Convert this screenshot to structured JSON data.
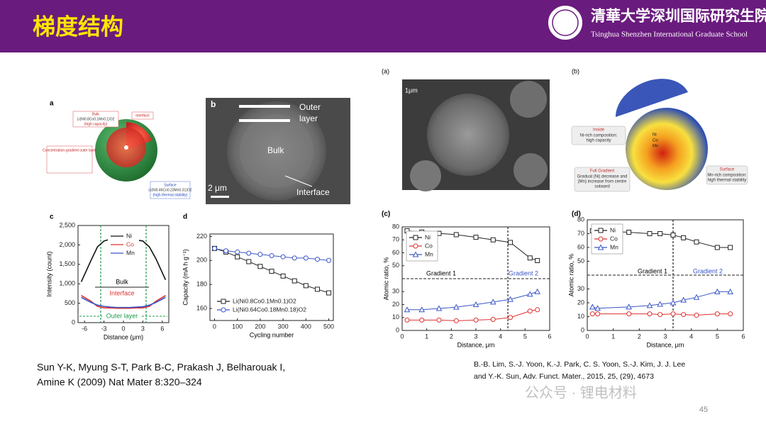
{
  "header": {
    "title": "梯度结构",
    "institution": "清華大学深圳国际研究生院",
    "institution_en": "Tsinghua Shenzhen International Graduate School"
  },
  "figures": {
    "left_a": {
      "label": "a",
      "texts": [
        "Bulk",
        "Li(Ni0.8Co0.1Mn0.1)O2",
        "(high capacity)",
        "Interface",
        "Concentration-gradient outer layer",
        "Surface",
        "Li(Ni0.46Co0.23Mn0.31)O2",
        "(high thermal stability)"
      ]
    },
    "left_b": {
      "label": "b",
      "outer": [
        "Outer",
        "layer"
      ],
      "bulk": "Bulk",
      "interface": "Interface",
      "scale": "2 μm"
    },
    "right_a": {
      "label": "(a)",
      "scale": "1μm"
    },
    "right_b": {
      "label": "(b)",
      "texts": [
        "Inside",
        "Ni-rich composition:",
        "high capacity",
        "Full Gradient",
        "Gradual (Ni) decrease and",
        "(Mn) increase from centre",
        "outward",
        "Surface",
        "Mn-rich composition:",
        "high thermal stability",
        "Ni",
        "Co",
        "Mn"
      ]
    }
  },
  "chart_data": [
    {
      "type": "line",
      "label": "c",
      "xlabel": "Distance (μm)",
      "ylabel": "Intensity (count)",
      "xlim": [
        -7,
        7
      ],
      "xticks": [
        -6,
        -3,
        0,
        3,
        6
      ],
      "ylim": [
        0,
        2500
      ],
      "yticks": [
        0,
        500,
        {
          "value": 1000,
          "label": "1,000"
        },
        {
          "value": 1500,
          "label": "1,500"
        },
        {
          "value": 2000,
          "label": "2,000"
        },
        {
          "value": 2500,
          "label": "2,500"
        }
      ],
      "vlines": [
        -3.5,
        3.5
      ],
      "vline_color": "#1a9a4a",
      "legend": "upper center",
      "annotations": [
        "Bulk",
        "Interface",
        "Outer layer"
      ],
      "x": [
        -6.5,
        -5,
        -4,
        -3,
        -2,
        -1,
        0,
        1,
        2,
        3,
        4,
        5,
        6.5
      ],
      "series": [
        {
          "name": "Ni",
          "color": "#111111",
          "values": [
            1050,
            1600,
            1950,
            2100,
            2150,
            2180,
            2150,
            2150,
            2130,
            2100,
            1950,
            1650,
            1100
          ]
        },
        {
          "name": "Co",
          "color": "#e03030",
          "values": [
            700,
            550,
            420,
            380,
            380,
            370,
            370,
            370,
            380,
            380,
            420,
            550,
            700
          ]
        },
        {
          "name": "Mn",
          "color": "#3a55c8",
          "values": [
            650,
            520,
            450,
            420,
            400,
            390,
            390,
            390,
            400,
            410,
            450,
            520,
            650
          ]
        }
      ]
    },
    {
      "type": "line",
      "label": "d",
      "xlabel": "Cycling number",
      "ylabel": "Capacity (mA h g⁻¹)",
      "xlim": [
        -20,
        520
      ],
      "xticks": [
        0,
        100,
        200,
        300,
        400,
        500
      ],
      "ylim": [
        150,
        222
      ],
      "yticks": [
        160,
        180,
        200,
        220
      ],
      "legend": "lower left",
      "x": [
        0,
        50,
        100,
        150,
        200,
        250,
        300,
        350,
        400,
        450,
        500
      ],
      "series": [
        {
          "name": "Li(Ni0.8Co0.1Mn0.1)O2",
          "color": "#222222",
          "marker": "square",
          "values": [
            210,
            207,
            203,
            199,
            195,
            191,
            187,
            183,
            179,
            176,
            173
          ]
        },
        {
          "name": "Li(Ni0.64Co0.18Mn0.18)O2",
          "color": "#3a55c8",
          "marker": "circle",
          "values": [
            210,
            208,
            207,
            206,
            205,
            204,
            203,
            202,
            202,
            201,
            200
          ]
        }
      ]
    },
    {
      "type": "line",
      "label": "(c)",
      "xlabel": "Distance, μm",
      "ylabel": "Atomic ratio, %",
      "xlim": [
        0,
        6
      ],
      "xticks": [
        0,
        1,
        2,
        3,
        4,
        5,
        6
      ],
      "ylim": [
        0,
        80
      ],
      "yticks": [
        0,
        10,
        20,
        30,
        50,
        60,
        70,
        80
      ],
      "vlines": [
        4.3
      ],
      "vline_color": "#222222",
      "legend": "upper left",
      "annotations": [
        "Gradient 1",
        "Gradient 2"
      ],
      "x": [
        0.2,
        0.8,
        1.5,
        2.2,
        3.0,
        3.7,
        4.4,
        5.2,
        5.5
      ],
      "series": [
        {
          "name": "Ni",
          "color": "#222222",
          "marker": "square",
          "values": [
            77,
            76,
            75,
            74,
            72,
            70,
            68,
            56,
            54
          ]
        },
        {
          "name": "Co",
          "color": "#e03030",
          "marker": "circle",
          "values": [
            8,
            8,
            8,
            7.5,
            8,
            8.5,
            10,
            15,
            16
          ]
        },
        {
          "name": "Mn",
          "color": "#3a55c8",
          "marker": "triangle",
          "values": [
            16,
            16,
            17,
            18,
            20,
            22,
            24,
            28,
            30
          ]
        }
      ]
    },
    {
      "type": "line",
      "label": "(d)",
      "xlabel": "Distance, μm",
      "ylabel": "Atomic ratio, %",
      "xlim": [
        0,
        6
      ],
      "xticks": [
        0,
        1,
        2,
        3,
        4,
        5,
        6
      ],
      "ylim": [
        0,
        80
      ],
      "yticks": [
        0,
        10,
        20,
        30,
        50,
        60,
        70,
        80
      ],
      "vlines": [
        3.3
      ],
      "vline_color": "#222222",
      "legend": "upper left",
      "annotations": [
        "Gradient 1",
        "Gradient 2"
      ],
      "x": [
        0.2,
        0.4,
        1.6,
        2.4,
        2.8,
        3.3,
        3.7,
        4.2,
        5.0,
        5.5
      ],
      "series": [
        {
          "name": "Ni",
          "color": "#222222",
          "marker": "square",
          "values": [
            72,
            72,
            71,
            70,
            70,
            69,
            67,
            64,
            60,
            60
          ]
        },
        {
          "name": "Co",
          "color": "#e03030",
          "marker": "circle",
          "values": [
            12,
            12,
            12,
            12,
            11.5,
            12,
            11.5,
            11,
            12,
            12
          ]
        },
        {
          "name": "Mn",
          "color": "#3a55c8",
          "marker": "triangle",
          "values": [
            17,
            16,
            17,
            18,
            19,
            20,
            22,
            24,
            28,
            28
          ]
        }
      ]
    }
  ],
  "citations": [
    "Sun Y-K, Myung S-T, Park B-C, Prakash J, Belharouak I,",
    "Amine K (2009) Nat Mater 8:320–324",
    "B.-B. Lim, S.-J. Yoon, K.-J. Park, C. S. Yoon, S.-J. Kim, J. J. Lee",
    "and Y.-K. Sun, Adv. Funct. Mater., 2015, 25, (29), 4673"
  ],
  "watermark": "公众号 · 锂电材料",
  "page_number": 45
}
